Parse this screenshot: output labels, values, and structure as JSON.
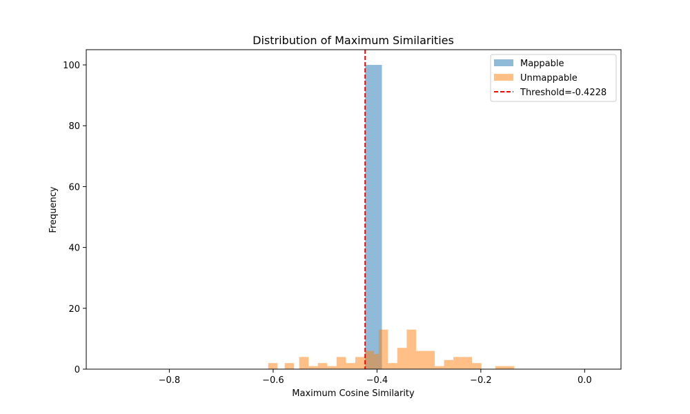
{
  "chart_data": {
    "type": "bar",
    "title": "Distribution of Maximum Similarities",
    "xlabel": "Maximum Cosine Similarity",
    "ylabel": "Frequency",
    "xlim": [
      -0.96,
      0.07
    ],
    "ylim": [
      0,
      105
    ],
    "xticks": [
      -0.8,
      -0.6,
      -0.4,
      -0.2,
      0.0
    ],
    "xtick_labels": [
      "−0.8",
      "−0.6",
      "−0.4",
      "−0.2",
      "0.0"
    ],
    "yticks": [
      0,
      20,
      40,
      60,
      80,
      100
    ],
    "ytick_labels": [
      "0",
      "20",
      "40",
      "60",
      "80",
      "100"
    ],
    "grid": false,
    "legend_position": "top-right",
    "series": [
      {
        "name": "Mappable",
        "color": "#1f77b4",
        "alpha": 0.5,
        "bins": [
          {
            "x0": -0.4228,
            "x1": -0.3905,
            "value": 100
          }
        ]
      },
      {
        "name": "Unmappable",
        "color": "#ff7f0e",
        "alpha": 0.5,
        "bins": [
          {
            "x0": -0.6096,
            "x1": -0.5916,
            "value": 2
          },
          {
            "x0": -0.5778,
            "x1": -0.5598,
            "value": 2
          },
          {
            "x0": -0.5498,
            "x1": -0.5318,
            "value": 4
          },
          {
            "x0": -0.5318,
            "x1": -0.5138,
            "value": 1
          },
          {
            "x0": -0.5138,
            "x1": -0.4958,
            "value": 2
          },
          {
            "x0": -0.4958,
            "x1": -0.4778,
            "value": 1
          },
          {
            "x0": -0.4778,
            "x1": -0.4598,
            "value": 4
          },
          {
            "x0": -0.4598,
            "x1": -0.4418,
            "value": 2
          },
          {
            "x0": -0.4418,
            "x1": -0.4238,
            "value": 4
          },
          {
            "x0": -0.4238,
            "x1": -0.4058,
            "value": 6
          },
          {
            "x0": -0.4058,
            "x1": -0.3968,
            "value": 5
          },
          {
            "x0": -0.3968,
            "x1": -0.3788,
            "value": 13
          },
          {
            "x0": -0.3788,
            "x1": -0.3608,
            "value": 2
          },
          {
            "x0": -0.3608,
            "x1": -0.3428,
            "value": 7
          },
          {
            "x0": -0.3428,
            "x1": -0.3248,
            "value": 13
          },
          {
            "x0": -0.3248,
            "x1": -0.2888,
            "value": 6
          },
          {
            "x0": -0.2888,
            "x1": -0.2708,
            "value": 1
          },
          {
            "x0": -0.2708,
            "x1": -0.2528,
            "value": 3
          },
          {
            "x0": -0.2528,
            "x1": -0.2168,
            "value": 4
          },
          {
            "x0": -0.2168,
            "x1": -0.1988,
            "value": 2
          },
          {
            "x0": -0.1718,
            "x1": -0.1358,
            "value": 1
          }
        ]
      }
    ],
    "threshold": {
      "name": "Threshold=-0.4228",
      "value": -0.4228,
      "color": "#ff0000",
      "style": "dashed"
    }
  }
}
